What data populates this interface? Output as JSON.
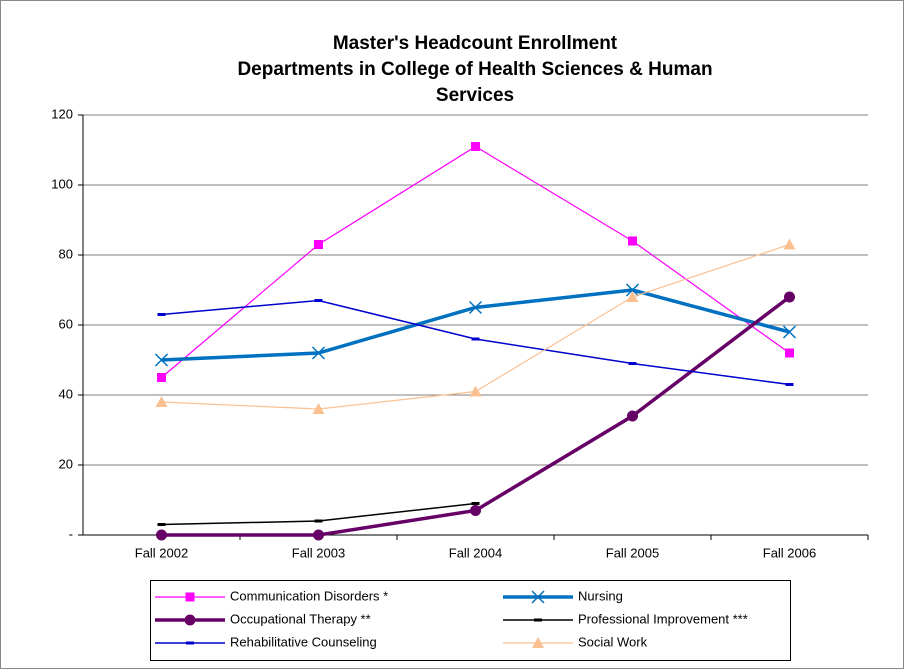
{
  "chart_data": {
    "type": "line",
    "title": [
      "Master's Headcount Enrollment",
      "Departments in College of Health Sciences & Human",
      "Services"
    ],
    "categories": [
      "Fall 2002",
      "Fall 2003",
      "Fall 2004",
      "Fall 2005",
      "Fall 2006"
    ],
    "series": [
      {
        "name": "Communication Disorders *",
        "color": "#ff00ff",
        "marker": "square",
        "values": [
          45,
          83,
          111,
          84,
          52
        ]
      },
      {
        "name": "Nursing",
        "color": "#0070c0",
        "marker": "x",
        "values": [
          50,
          52,
          65,
          70,
          58
        ]
      },
      {
        "name": "Occupational Therapy **",
        "color": "#660066",
        "marker": "circle",
        "values": [
          0,
          0,
          7,
          34,
          68
        ]
      },
      {
        "name": "Professional Improvement ***",
        "color": "#000000",
        "marker": "dash",
        "values": [
          3,
          4,
          9,
          null,
          null
        ]
      },
      {
        "name": "Rehabilitative Counseling",
        "color": "#0000cc",
        "marker": "dash",
        "values": [
          63,
          67,
          56,
          49,
          43
        ]
      },
      {
        "name": "Social Work",
        "color": "#fac090",
        "marker": "triangle",
        "values": [
          38,
          36,
          41,
          68,
          83
        ]
      }
    ],
    "ylim": [
      0,
      120
    ],
    "yticks": [
      {
        "value": 0,
        "label": "-"
      },
      20,
      40,
      60,
      80,
      100,
      120
    ],
    "grid": true
  }
}
